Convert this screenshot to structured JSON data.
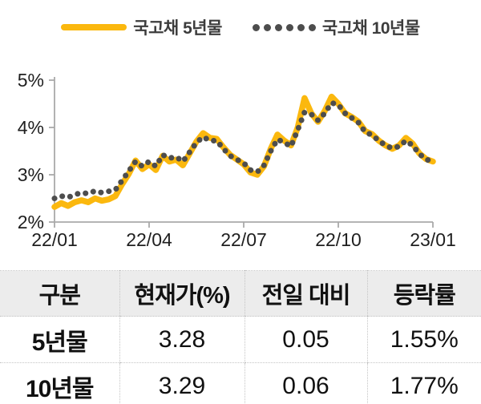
{
  "legend": {
    "series1_label": "국고채 5년물",
    "series2_label": "국고채 10년물"
  },
  "colors": {
    "series1": "#FBB80E",
    "series2": "#4D4D4D",
    "axis": "#A9A9A9",
    "table_header_bg": "#ECECEC",
    "table_border_dotted": "#C4C4C4"
  },
  "chart_data": {
    "type": "line",
    "title": "",
    "xlabel": "",
    "ylabel": "",
    "ylim": [
      2,
      5
    ],
    "grid": false,
    "legend_position": "top-center",
    "x_tick_labels": [
      "22/01",
      "22/04",
      "22/07",
      "22/10",
      "23/01"
    ],
    "y_tick_labels": [
      "5%",
      "4%",
      "3%",
      "2%"
    ],
    "series": [
      {
        "name": "국고채 5년물",
        "style": "solid",
        "color": "#FBB80E",
        "values": [
          2.32,
          2.4,
          2.34,
          2.42,
          2.46,
          2.42,
          2.5,
          2.45,
          2.48,
          2.55,
          2.8,
          3.02,
          3.3,
          3.12,
          3.22,
          3.1,
          3.4,
          3.28,
          3.32,
          3.2,
          3.45,
          3.7,
          3.88,
          3.78,
          3.76,
          3.58,
          3.42,
          3.32,
          3.22,
          3.05,
          3.0,
          3.18,
          3.55,
          3.85,
          3.72,
          3.62,
          4.0,
          4.62,
          4.3,
          4.12,
          4.35,
          4.65,
          4.5,
          4.3,
          4.22,
          4.12,
          3.92,
          3.86,
          3.72,
          3.62,
          3.55,
          3.62,
          3.78,
          3.66,
          3.45,
          3.33,
          3.28
        ]
      },
      {
        "name": "국고채 10년물",
        "style": "dotted",
        "color": "#4D4D4D",
        "values": [
          2.5,
          2.55,
          2.52,
          2.58,
          2.62,
          2.6,
          2.66,
          2.62,
          2.65,
          2.68,
          2.88,
          3.08,
          3.28,
          3.18,
          3.28,
          3.18,
          3.42,
          3.35,
          3.38,
          3.28,
          3.48,
          3.68,
          3.8,
          3.72,
          3.72,
          3.55,
          3.4,
          3.32,
          3.25,
          3.1,
          3.06,
          3.2,
          3.5,
          3.75,
          3.68,
          3.6,
          3.95,
          4.32,
          4.28,
          4.15,
          4.3,
          4.52,
          4.48,
          4.3,
          4.2,
          4.1,
          3.9,
          3.84,
          3.72,
          3.62,
          3.56,
          3.6,
          3.72,
          3.62,
          3.44,
          3.32,
          3.29
        ]
      }
    ]
  },
  "table": {
    "headers": [
      "구분",
      "현재가(%)",
      "전일 대비",
      "등락률"
    ],
    "rows": [
      {
        "cells": [
          "5년물",
          "3.28",
          "0.05",
          "1.55%"
        ]
      },
      {
        "cells": [
          "10년물",
          "3.29",
          "0.06",
          "1.77%"
        ]
      }
    ]
  }
}
